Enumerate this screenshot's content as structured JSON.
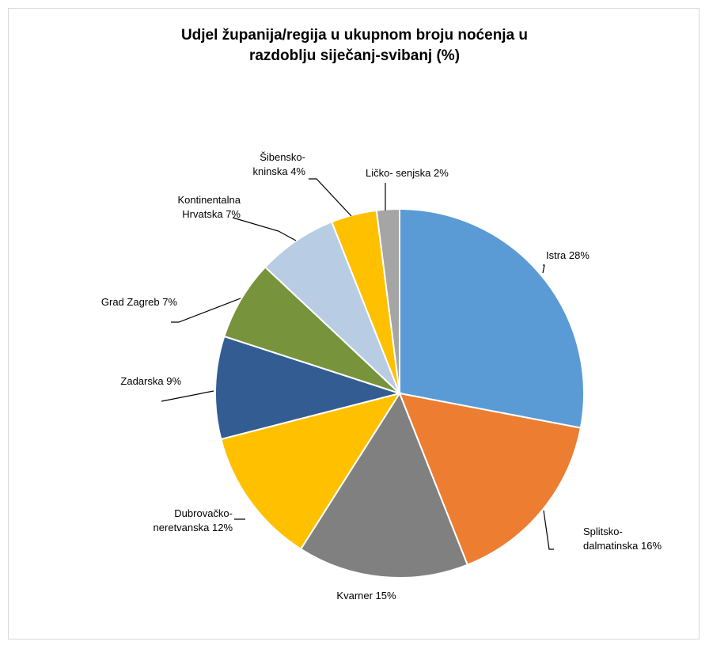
{
  "chart_data": {
    "type": "pie",
    "title": "Udjel županija/regija u ukupnom broju noćenja u razdoblju siječanj-svibanj (%)",
    "title_lines": [
      "Udjel županija/regija u ukupnom broju noćenja u",
      "razdoblju siječanj-svibanj (%)"
    ],
    "slices": [
      {
        "label_lines": [
          "Istra 28%"
        ],
        "value": 28,
        "color": "#5b9bd5"
      },
      {
        "label_lines": [
          "Splitsko-",
          "dalmatinska 16%"
        ],
        "value": 16,
        "color": "#ed7d31"
      },
      {
        "label_lines": [
          "Kvarner 15%"
        ],
        "value": 15,
        "color": "#808080"
      },
      {
        "label_lines": [
          "Dubrovačko-",
          "neretvanska 12%"
        ],
        "value": 12,
        "color": "#ffc000"
      },
      {
        "label_lines": [
          "Zadarska 9%"
        ],
        "value": 9,
        "color": "#335d92"
      },
      {
        "label_lines": [
          "Grad Zagreb 7%"
        ],
        "value": 7,
        "color": "#77933c"
      },
      {
        "label_lines": [
          "Kontinentalna",
          "Hrvatska 7%"
        ],
        "value": 7,
        "color": "#b8cce4"
      },
      {
        "label_lines": [
          "Šibensko-",
          "kninska 4%"
        ],
        "value": 4,
        "color": "#ffc000"
      },
      {
        "label_lines": [
          "Ličko- senjska 2%"
        ],
        "value": 2,
        "color": "#a5a5a5"
      }
    ]
  }
}
